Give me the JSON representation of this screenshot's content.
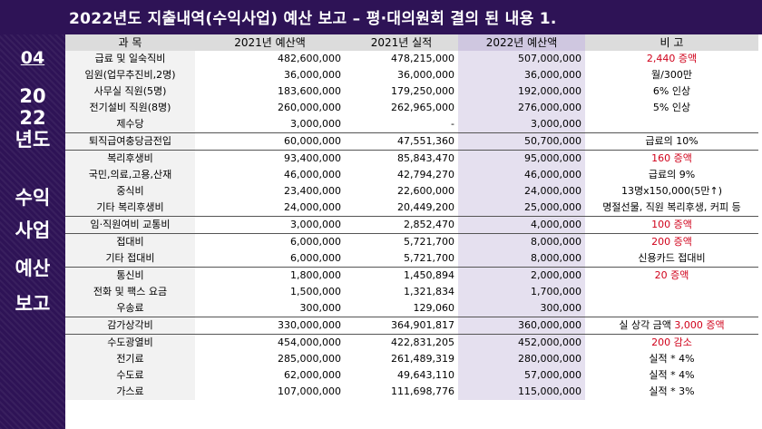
{
  "title": "2022년도  지출내역(수익사업) 예산 보고 – 평·대의원회 결의 된 내용   1.",
  "sidebar": {
    "num": "04",
    "year_top": "20",
    "year_mid": "22",
    "year_bot": "년도",
    "w1": "수익",
    "w2": "사업",
    "w3": "예산",
    "w4": "보고"
  },
  "table": {
    "headers": [
      "과  목",
      "2021년 예산액",
      "2021년 실적",
      "2022년 예산액",
      "비       고"
    ],
    "rows": [
      {
        "subject": "급료 및 일숙직비",
        "b21": "482,600,000",
        "a21": "478,215,000",
        "b22": "507,000,000",
        "note": "2,440 증액",
        "note_red": true
      },
      {
        "subject": "임원(업무추진비,2명)",
        "b21": "36,000,000",
        "a21": "36,000,000",
        "b22": "36,000,000",
        "note": "월/300만",
        "note_red": false
      },
      {
        "subject": "사무실 직원(5명)",
        "b21": "183,600,000",
        "a21": "179,250,000",
        "b22": "192,000,000",
        "note": "6% 인상",
        "note_red": false
      },
      {
        "subject": "전기설비 직원(8명)",
        "b21": "260,000,000",
        "a21": "262,965,000",
        "b22": "276,000,000",
        "note": "5% 인상",
        "note_red": false
      },
      {
        "subject": "제수당",
        "b21": "3,000,000",
        "a21": "-",
        "b22": "3,000,000",
        "note": "",
        "note_red": false
      },
      {
        "subject": "퇴직급여충당금전입",
        "b21": "60,000,000",
        "a21": "47,551,360",
        "b22": "50,700,000",
        "note": "급료의 10%",
        "note_red": false,
        "sep": true
      },
      {
        "subject": "복리후생비",
        "b21": "93,400,000",
        "a21": "85,843,470",
        "b22": "95,000,000",
        "note": "160 증액",
        "note_red": true,
        "sep": true
      },
      {
        "subject": "국민,의료,고용,산재",
        "b21": "46,000,000",
        "a21": "42,794,270",
        "b22": "46,000,000",
        "note": "급료의 9%",
        "note_red": false
      },
      {
        "subject": "중식비",
        "b21": "23,400,000",
        "a21": "22,600,000",
        "b22": "24,000,000",
        "note": "13명x150,000(5만↑)",
        "note_red": false
      },
      {
        "subject": "기타 복리후생비",
        "b21": "24,000,000",
        "a21": "20,449,200",
        "b22": "25,000,000",
        "note": "명절선물, 직원 복리후생, 커피 등",
        "note_red": false
      },
      {
        "subject": "임·직원여비 교통비",
        "b21": "3,000,000",
        "a21": "2,852,470",
        "b22": "4,000,000",
        "note": "100 증액",
        "note_red": true,
        "sep": true
      },
      {
        "subject": "접대비",
        "b21": "6,000,000",
        "a21": "5,721,700",
        "b22": "8,000,000",
        "note": "200 증액",
        "note_red": true,
        "sep": true
      },
      {
        "subject": "기타 접대비",
        "b21": "6,000,000",
        "a21": "5,721,700",
        "b22": "8,000,000",
        "note": "신용카드 접대비",
        "note_red": false
      },
      {
        "subject": "통신비",
        "b21": "1,800,000",
        "a21": "1,450,894",
        "b22": "2,000,000",
        "note": "20 증액",
        "note_red": true,
        "sep": true
      },
      {
        "subject": "전화 및 팩스 요금",
        "b21": "1,500,000",
        "a21": "1,321,834",
        "b22": "1,700,000",
        "note": "",
        "note_red": false
      },
      {
        "subject": "우송료",
        "b21": "300,000",
        "a21": "129,060",
        "b22": "300,000",
        "note": "",
        "note_red": false
      },
      {
        "subject": "감가상각비",
        "b21": "330,000,000",
        "a21": "364,901,817",
        "b22": "360,000,000",
        "note_pre": "실 상각 금액 ",
        "note": "3,000 증액",
        "note_red": true,
        "sep": true
      },
      {
        "subject": "수도광열비",
        "b21": "454,000,000",
        "a21": "422,831,205",
        "b22": "452,000,000",
        "note": "200 감소",
        "note_red": true,
        "sep": true
      },
      {
        "subject": "전기료",
        "b21": "285,000,000",
        "a21": "261,489,319",
        "b22": "280,000,000",
        "note": "실적 * 4%",
        "note_red": false
      },
      {
        "subject": "수도료",
        "b21": "62,000,000",
        "a21": "49,643,110",
        "b22": "57,000,000",
        "note": "실적 * 4%",
        "note_red": false
      },
      {
        "subject": "가스료",
        "b21": "107,000,000",
        "a21": "111,698,776",
        "b22": "115,000,000",
        "note": "실적 * 3%",
        "note_red": false
      }
    ]
  }
}
